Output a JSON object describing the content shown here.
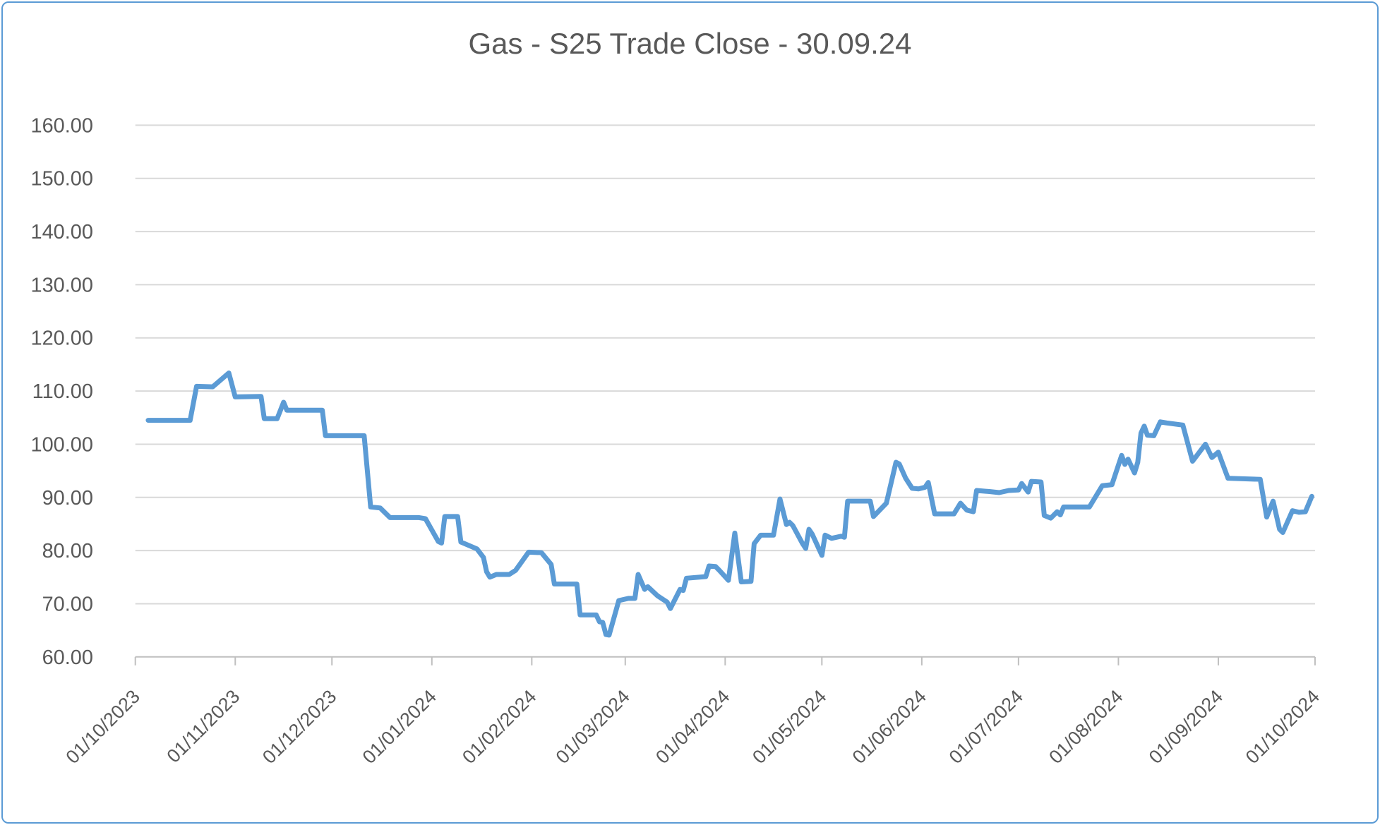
{
  "chart_data": {
    "type": "line",
    "title": "Gas - S25 Trade Close - 30.09.24",
    "legend": "none",
    "grid": "horizontal-only",
    "ylim": [
      60,
      160
    ],
    "y_tick_labels": [
      "60.00",
      "70.00",
      "80.00",
      "90.00",
      "100.00",
      "110.00",
      "120.00",
      "130.00",
      "140.00",
      "150.00",
      "160.00"
    ],
    "x_tick_labels": [
      "01/10/2023",
      "01/11/2023",
      "01/12/2023",
      "01/01/2024",
      "01/02/2024",
      "01/03/2024",
      "01/04/2024",
      "01/05/2024",
      "01/06/2024",
      "01/07/2024",
      "01/08/2024",
      "01/09/2024",
      "01/10/2024"
    ],
    "x_range": [
      "01/10/2023",
      "01/10/2024"
    ],
    "series": [
      {
        "name": "Gas S25 Trade Close",
        "points": [
          [
            "05/10/2023",
            104.5
          ],
          [
            "18/10/2023",
            104.5
          ],
          [
            "20/10/2023",
            110.9
          ],
          [
            "25/10/2023",
            110.8
          ],
          [
            "30/10/2023",
            113.4
          ],
          [
            "01/11/2023",
            108.9
          ],
          [
            "09/11/2023",
            109.0
          ],
          [
            "10/11/2023",
            104.8
          ],
          [
            "14/11/2023",
            104.8
          ],
          [
            "16/11/2023",
            107.9
          ],
          [
            "17/11/2023",
            106.4
          ],
          [
            "28/11/2023",
            106.4
          ],
          [
            "29/11/2023",
            101.6
          ],
          [
            "11/12/2023",
            101.6
          ],
          [
            "13/12/2023",
            88.2
          ],
          [
            "16/12/2023",
            88.0
          ],
          [
            "19/12/2023",
            86.2
          ],
          [
            "28/12/2023",
            86.2
          ],
          [
            "30/12/2023",
            86.0
          ],
          [
            "03/01/2024",
            81.7
          ],
          [
            "04/01/2024",
            81.4
          ],
          [
            "05/01/2024",
            86.4
          ],
          [
            "09/01/2024",
            86.4
          ],
          [
            "10/01/2024",
            81.6
          ],
          [
            "15/01/2024",
            80.3
          ],
          [
            "17/01/2024",
            78.7
          ],
          [
            "18/01/2024",
            76.0
          ],
          [
            "19/01/2024",
            75.0
          ],
          [
            "21/01/2024",
            75.5
          ],
          [
            "25/01/2024",
            75.5
          ],
          [
            "27/01/2024",
            76.3
          ],
          [
            "31/01/2024",
            79.7
          ],
          [
            "04/02/2024",
            79.6
          ],
          [
            "07/02/2024",
            77.4
          ],
          [
            "08/02/2024",
            73.7
          ],
          [
            "15/02/2024",
            73.7
          ],
          [
            "16/02/2024",
            67.9
          ],
          [
            "21/02/2024",
            67.9
          ],
          [
            "22/02/2024",
            66.6
          ],
          [
            "23/02/2024",
            66.5
          ],
          [
            "24/02/2024",
            64.2
          ],
          [
            "25/02/2024",
            64.1
          ],
          [
            "28/02/2024",
            70.6
          ],
          [
            "02/03/2024",
            71.0
          ],
          [
            "04/03/2024",
            71.0
          ],
          [
            "05/03/2024",
            75.5
          ],
          [
            "07/03/2024",
            72.7
          ],
          [
            "08/03/2024",
            73.2
          ],
          [
            "11/03/2024",
            71.5
          ],
          [
            "14/03/2024",
            70.3
          ],
          [
            "15/03/2024",
            69.1
          ],
          [
            "18/03/2024",
            72.7
          ],
          [
            "19/03/2024",
            72.5
          ],
          [
            "20/03/2024",
            74.8
          ],
          [
            "24/03/2024",
            75.0
          ],
          [
            "26/03/2024",
            75.1
          ],
          [
            "27/03/2024",
            77.1
          ],
          [
            "29/03/2024",
            77.0
          ],
          [
            "30/03/2024",
            76.4
          ],
          [
            "02/04/2024",
            74.4
          ],
          [
            "04/04/2024",
            83.3
          ],
          [
            "06/04/2024",
            74.1
          ],
          [
            "09/04/2024",
            74.2
          ],
          [
            "10/04/2024",
            81.3
          ],
          [
            "12/04/2024",
            82.9
          ],
          [
            "16/04/2024",
            82.9
          ],
          [
            "18/04/2024",
            89.7
          ],
          [
            "20/04/2024",
            84.9
          ],
          [
            "21/04/2024",
            85.3
          ],
          [
            "22/04/2024",
            84.7
          ],
          [
            "25/04/2024",
            81.3
          ],
          [
            "26/04/2024",
            80.4
          ],
          [
            "27/04/2024",
            84.0
          ],
          [
            "28/04/2024",
            83.1
          ],
          [
            "01/05/2024",
            79.1
          ],
          [
            "02/05/2024",
            82.9
          ],
          [
            "04/05/2024",
            82.3
          ],
          [
            "07/05/2024",
            82.7
          ],
          [
            "08/05/2024",
            82.5
          ],
          [
            "09/05/2024",
            89.3
          ],
          [
            "16/05/2024",
            89.3
          ],
          [
            "17/05/2024",
            86.4
          ],
          [
            "21/05/2024",
            88.9
          ],
          [
            "22/05/2024",
            91.5
          ],
          [
            "24/05/2024",
            96.6
          ],
          [
            "25/05/2024",
            96.3
          ],
          [
            "27/05/2024",
            93.6
          ],
          [
            "29/05/2024",
            91.7
          ],
          [
            "31/05/2024",
            91.6
          ],
          [
            "02/06/2024",
            91.9
          ],
          [
            "03/06/2024",
            92.8
          ],
          [
            "05/06/2024",
            86.9
          ],
          [
            "11/06/2024",
            86.9
          ],
          [
            "13/06/2024",
            88.9
          ],
          [
            "15/06/2024",
            87.6
          ],
          [
            "17/06/2024",
            87.3
          ],
          [
            "18/06/2024",
            91.3
          ],
          [
            "22/06/2024",
            91.1
          ],
          [
            "25/06/2024",
            90.9
          ],
          [
            "28/06/2024",
            91.3
          ],
          [
            "01/07/2024",
            91.4
          ],
          [
            "02/07/2024",
            92.6
          ],
          [
            "04/07/2024",
            91.0
          ],
          [
            "05/07/2024",
            93.0
          ],
          [
            "08/07/2024",
            92.9
          ],
          [
            "09/07/2024",
            86.6
          ],
          [
            "11/07/2024",
            86.1
          ],
          [
            "13/07/2024",
            87.3
          ],
          [
            "14/07/2024",
            86.7
          ],
          [
            "15/07/2024",
            88.2
          ],
          [
            "23/07/2024",
            88.2
          ],
          [
            "25/07/2024",
            90.2
          ],
          [
            "27/07/2024",
            92.2
          ],
          [
            "30/07/2024",
            92.4
          ],
          [
            "02/08/2024",
            97.9
          ],
          [
            "03/08/2024",
            96.2
          ],
          [
            "04/08/2024",
            97.2
          ],
          [
            "06/08/2024",
            94.6
          ],
          [
            "07/08/2024",
            96.6
          ],
          [
            "08/08/2024",
            102.1
          ],
          [
            "09/08/2024",
            103.4
          ],
          [
            "10/08/2024",
            101.7
          ],
          [
            "12/08/2024",
            101.6
          ],
          [
            "14/08/2024",
            104.2
          ],
          [
            "16/08/2024",
            104.0
          ],
          [
            "21/08/2024",
            103.6
          ],
          [
            "24/08/2024",
            96.8
          ],
          [
            "28/08/2024",
            100.0
          ],
          [
            "30/08/2024",
            97.5
          ],
          [
            "01/09/2024",
            98.5
          ],
          [
            "04/09/2024",
            93.6
          ],
          [
            "14/09/2024",
            93.4
          ],
          [
            "16/09/2024",
            86.3
          ],
          [
            "18/09/2024",
            89.3
          ],
          [
            "20/09/2024",
            84.0
          ],
          [
            "21/09/2024",
            83.4
          ],
          [
            "24/09/2024",
            87.5
          ],
          [
            "26/09/2024",
            87.2
          ],
          [
            "28/09/2024",
            87.3
          ],
          [
            "30/09/2024",
            90.2
          ]
        ]
      }
    ],
    "colors": {
      "line": "#5B9BD5",
      "frame_border": "#5B9BD5",
      "text": "#595959",
      "gridline": "#D9D9D9",
      "axis": "#BFBFBF"
    }
  }
}
